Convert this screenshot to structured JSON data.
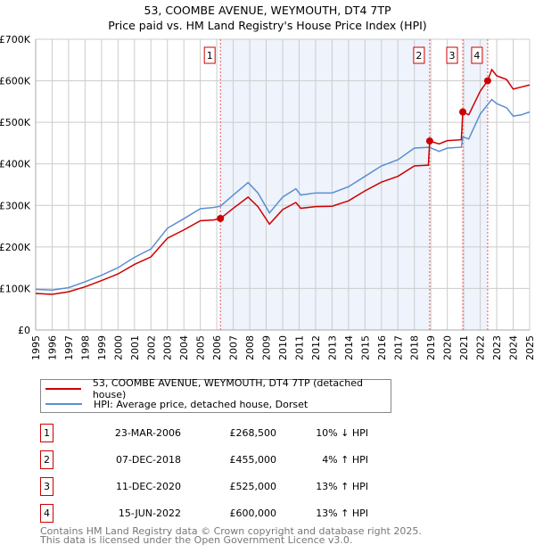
{
  "title": "53, COOMBE AVENUE, WEYMOUTH, DT4 7TP",
  "subtitle": "Price paid vs. HM Land Registry's House Price Index (HPI)",
  "colors": {
    "property": "#cc0000",
    "hpi": "#5b8fd0",
    "shade": "#eef3fc"
  },
  "chart_data": {
    "type": "line",
    "title": "53, COOMBE AVENUE, WEYMOUTH, DT4 7TP",
    "xlim": [
      1995,
      2025
    ],
    "ylim": [
      0,
      700000
    ],
    "y_ticks": [
      {
        "v": 0,
        "label": "£0"
      },
      {
        "v": 100000,
        "label": "£100K"
      },
      {
        "v": 200000,
        "label": "£200K"
      },
      {
        "v": 300000,
        "label": "£300K"
      },
      {
        "v": 400000,
        "label": "£400K"
      },
      {
        "v": 500000,
        "label": "£500K"
      },
      {
        "v": 600000,
        "label": "£600K"
      },
      {
        "v": 700000,
        "label": "£700K"
      }
    ],
    "x_ticks": [
      "1995",
      "1996",
      "1997",
      "1998",
      "1999",
      "2000",
      "2001",
      "2002",
      "2003",
      "2004",
      "2005",
      "2006",
      "2007",
      "2008",
      "2009",
      "2010",
      "2011",
      "2012",
      "2013",
      "2014",
      "2015",
      "2016",
      "2017",
      "2018",
      "2019",
      "2020",
      "2021",
      "2022",
      "2023",
      "2024",
      "2025"
    ],
    "grid": true,
    "series": [
      {
        "name": "53, COOMBE AVENUE, WEYMOUTH, DT4 7TP (detached house)",
        "color": "#cc0000",
        "points": [
          [
            1995,
            88000
          ],
          [
            1996,
            86000
          ],
          [
            1997,
            92000
          ],
          [
            1998,
            104000
          ],
          [
            1999,
            119000
          ],
          [
            2000,
            135000
          ],
          [
            2001,
            158000
          ],
          [
            2002,
            176000
          ],
          [
            2003,
            221000
          ],
          [
            2004,
            241000
          ],
          [
            2005,
            263000
          ],
          [
            2005.8,
            265000
          ],
          [
            2006.22,
            268500
          ],
          [
            2007,
            293000
          ],
          [
            2007.9,
            320000
          ],
          [
            2008.5,
            297000
          ],
          [
            2009.2,
            255000
          ],
          [
            2010,
            290000
          ],
          [
            2010.8,
            307000
          ],
          [
            2011.1,
            293000
          ],
          [
            2012,
            297000
          ],
          [
            2013,
            298000
          ],
          [
            2014,
            311000
          ],
          [
            2015,
            335000
          ],
          [
            2016,
            356000
          ],
          [
            2017,
            370000
          ],
          [
            2018,
            395000
          ],
          [
            2018.85,
            397000
          ],
          [
            2018.93,
            455000
          ],
          [
            2019.5,
            448000
          ],
          [
            2020,
            456000
          ],
          [
            2020.85,
            458000
          ],
          [
            2020.94,
            525000
          ],
          [
            2021.3,
            518000
          ],
          [
            2022,
            575000
          ],
          [
            2022.45,
            600000
          ],
          [
            2022.7,
            627000
          ],
          [
            2023,
            612000
          ],
          [
            2023.6,
            603000
          ],
          [
            2024,
            580000
          ],
          [
            2024.5,
            585000
          ],
          [
            2025,
            590000
          ]
        ]
      },
      {
        "name": "HPI: Average price, detached house, Dorset",
        "color": "#5b8fd0",
        "points": [
          [
            1995,
            98000
          ],
          [
            1996,
            96000
          ],
          [
            1997,
            102000
          ],
          [
            1998,
            116000
          ],
          [
            1999,
            132000
          ],
          [
            2000,
            150000
          ],
          [
            2001,
            175000
          ],
          [
            2002,
            195000
          ],
          [
            2003,
            245000
          ],
          [
            2004,
            268000
          ],
          [
            2005,
            292000
          ],
          [
            2005.8,
            295000
          ],
          [
            2006.22,
            298000
          ],
          [
            2007,
            325000
          ],
          [
            2007.9,
            355000
          ],
          [
            2008.5,
            330000
          ],
          [
            2009.2,
            282000
          ],
          [
            2010,
            320000
          ],
          [
            2010.8,
            340000
          ],
          [
            2011.1,
            325000
          ],
          [
            2012,
            330000
          ],
          [
            2013,
            330000
          ],
          [
            2014,
            345000
          ],
          [
            2015,
            370000
          ],
          [
            2016,
            395000
          ],
          [
            2017,
            410000
          ],
          [
            2018,
            438000
          ],
          [
            2018.9,
            440000
          ],
          [
            2019.5,
            430000
          ],
          [
            2020,
            438000
          ],
          [
            2020.85,
            440000
          ],
          [
            2020.94,
            465000
          ],
          [
            2021.3,
            460000
          ],
          [
            2022,
            520000
          ],
          [
            2022.7,
            555000
          ],
          [
            2023,
            545000
          ],
          [
            2023.6,
            535000
          ],
          [
            2024,
            515000
          ],
          [
            2024.5,
            518000
          ],
          [
            2025,
            525000
          ]
        ]
      }
    ],
    "sales": [
      {
        "n": "1",
        "year": 2006.22,
        "value": 268500
      },
      {
        "n": "2",
        "year": 2018.93,
        "value": 455000
      },
      {
        "n": "3",
        "year": 2020.94,
        "value": 525000
      },
      {
        "n": "4",
        "year": 2022.45,
        "value": 600000
      }
    ],
    "shaded": [
      [
        2006.22,
        2018.93
      ],
      [
        2020.94,
        2022.45
      ]
    ]
  },
  "legend": [
    "53, COOMBE AVENUE, WEYMOUTH, DT4 7TP (detached house)",
    "HPI: Average price, detached house, Dorset"
  ],
  "table": [
    {
      "n": "1",
      "date": "23-MAR-2006",
      "price": "£268,500",
      "hpi": "10% ↓ HPI"
    },
    {
      "n": "2",
      "date": "07-DEC-2018",
      "price": "£455,000",
      "hpi": "4% ↑ HPI"
    },
    {
      "n": "3",
      "date": "11-DEC-2020",
      "price": "£525,000",
      "hpi": "13% ↑ HPI"
    },
    {
      "n": "4",
      "date": "15-JUN-2022",
      "price": "£600,000",
      "hpi": "13% ↑ HPI"
    }
  ],
  "footer": [
    "Contains HM Land Registry data © Crown copyright and database right 2025.",
    "This data is licensed under the Open Government Licence v3.0."
  ]
}
